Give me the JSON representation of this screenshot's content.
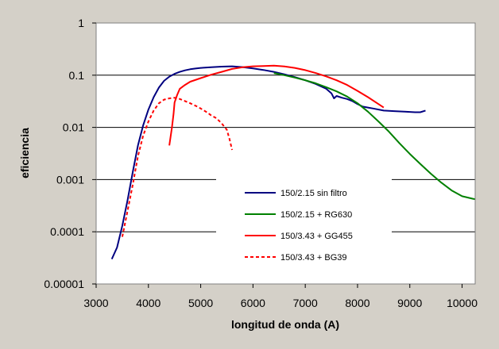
{
  "chart_data": {
    "type": "line",
    "xlabel": "longitud de onda (A)",
    "ylabel": "eficiencia",
    "xlim": [
      3000,
      10250
    ],
    "ylim": [
      1e-05,
      1
    ],
    "yscale": "log",
    "grid": "horizontal major gridlines",
    "legend_position": "center-right inside plot",
    "x_ticks": [
      3000,
      4000,
      5000,
      6000,
      7000,
      8000,
      9000,
      10000
    ],
    "y_ticks": [
      {
        "value": 1,
        "label": "1"
      },
      {
        "value": 0.1,
        "label": "0.1"
      },
      {
        "value": 0.01,
        "label": "0.01"
      },
      {
        "value": 0.001,
        "label": "0.001"
      },
      {
        "value": 0.0001,
        "label": "0.0001"
      },
      {
        "value": 1e-05,
        "label": "0.00001"
      }
    ],
    "plot_background": "#ffffff",
    "series": [
      {
        "name": "150/2.15 sin filtro",
        "color": "#000080",
        "dash": "solid",
        "x": [
          3300,
          3400,
          3500,
          3600,
          3700,
          3800,
          3900,
          4000,
          4100,
          4200,
          4300,
          4400,
          4500,
          4600,
          4700,
          4800,
          4900,
          5000,
          5200,
          5400,
          5600,
          5800,
          6000,
          6200,
          6400,
          6600,
          6800,
          7000,
          7200,
          7400,
          7500,
          7550,
          7600,
          7700,
          7800,
          7900,
          8000,
          8100,
          8200,
          8300,
          8500,
          8700,
          8900,
          9100,
          9200,
          9300
        ],
        "y": [
          3e-05,
          5e-05,
          0.00013,
          0.0004,
          0.0014,
          0.0045,
          0.011,
          0.022,
          0.038,
          0.058,
          0.078,
          0.094,
          0.106,
          0.116,
          0.124,
          0.13,
          0.134,
          0.138,
          0.142,
          0.146,
          0.148,
          0.143,
          0.135,
          0.126,
          0.116,
          0.104,
          0.092,
          0.08,
          0.068,
          0.055,
          0.045,
          0.036,
          0.04,
          0.037,
          0.035,
          0.032,
          0.028,
          0.025,
          0.024,
          0.023,
          0.021,
          0.0205,
          0.02,
          0.0195,
          0.0195,
          0.021
        ]
      },
      {
        "name": "150/2.15 + RG630",
        "color": "#008000",
        "dash": "solid",
        "x": [
          6400,
          6600,
          6800,
          7000,
          7200,
          7400,
          7600,
          7800,
          8000,
          8200,
          8400,
          8600,
          8800,
          9000,
          9200,
          9400,
          9600,
          9800,
          10000,
          10200,
          10250
        ],
        "y": [
          0.11,
          0.1,
          0.09,
          0.08,
          0.07,
          0.059,
          0.049,
          0.039,
          0.029,
          0.02,
          0.013,
          0.0083,
          0.005,
          0.0031,
          0.002,
          0.0013,
          0.00088,
          0.00062,
          0.00048,
          0.00043,
          0.00042
        ]
      },
      {
        "name": "150/3.43 + GG455",
        "color": "#ff0000",
        "dash": "solid",
        "x": [
          4400,
          4450,
          4480,
          4500,
          4550,
          4600,
          4700,
          4800,
          5000,
          5200,
          5400,
          5600,
          5800,
          6000,
          6200,
          6400,
          6600,
          6800,
          7000,
          7200,
          7400,
          7600,
          7800,
          8000,
          8200,
          8400,
          8500
        ],
        "y": [
          0.0045,
          0.01,
          0.018,
          0.03,
          0.042,
          0.055,
          0.065,
          0.075,
          0.088,
          0.102,
          0.116,
          0.132,
          0.142,
          0.148,
          0.15,
          0.152,
          0.147,
          0.138,
          0.125,
          0.11,
          0.095,
          0.08,
          0.065,
          0.05,
          0.038,
          0.028,
          0.024
        ]
      },
      {
        "name": "150/3.43 + BG39",
        "color": "#ff0000",
        "dash": "dashed",
        "x": [
          3500,
          3600,
          3700,
          3800,
          3900,
          4000,
          4100,
          4200,
          4300,
          4400,
          4500,
          4600,
          4700,
          4800,
          4900,
          5000,
          5100,
          5200,
          5300,
          5400,
          5500,
          5550,
          5600
        ],
        "y": [
          8e-05,
          0.00025,
          0.0008,
          0.0028,
          0.007,
          0.013,
          0.021,
          0.029,
          0.034,
          0.036,
          0.037,
          0.035,
          0.032,
          0.029,
          0.026,
          0.023,
          0.02,
          0.017,
          0.015,
          0.012,
          0.009,
          0.006,
          0.0037
        ]
      }
    ]
  }
}
